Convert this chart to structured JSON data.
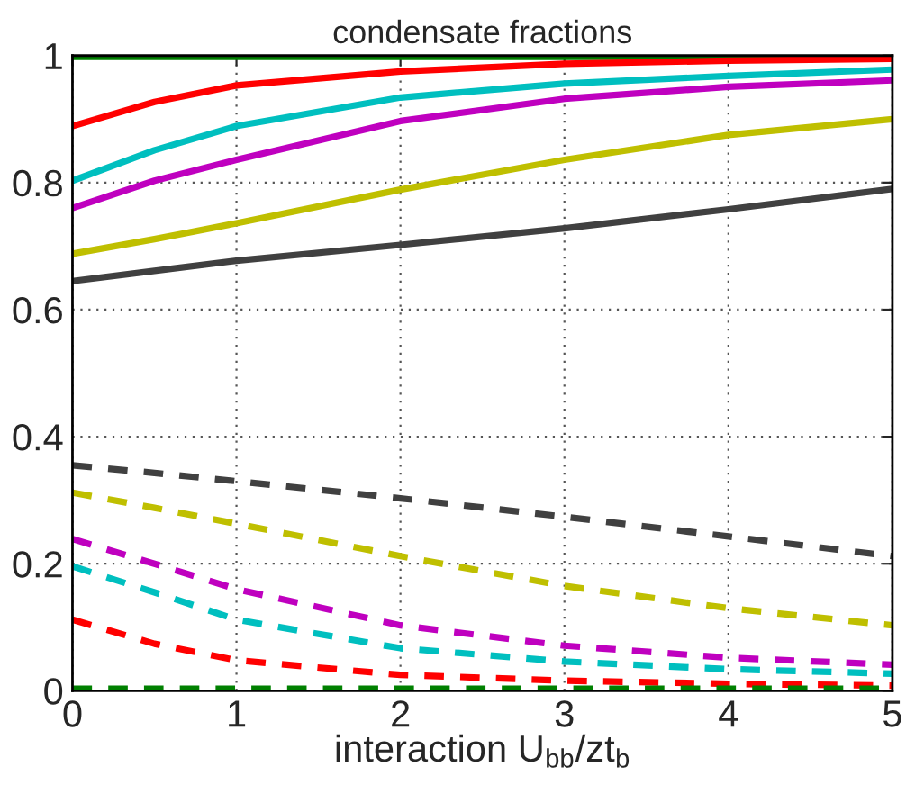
{
  "chart_data": {
    "type": "line",
    "title": "condensate fractions",
    "xlabel": "interaction U$_{bb}$/zt$_{b}$",
    "xlim": [
      0,
      5
    ],
    "ylim": [
      0,
      1
    ],
    "xticks": [
      0,
      1,
      2,
      3,
      4,
      5
    ],
    "yticks": [
      0,
      0.2,
      0.4,
      0.6,
      0.8,
      1
    ],
    "grid": true,
    "x": [
      0,
      0.5,
      1,
      2,
      3,
      4,
      5
    ],
    "series": [
      {
        "color": "#008000",
        "line_style": "solid",
        "values": [
          0.998,
          0.998,
          0.998,
          0.998,
          0.998,
          0.998,
          0.998
        ]
      },
      {
        "color": "#ff0000",
        "line_style": "solid",
        "values": [
          0.889,
          0.927,
          0.953,
          0.975,
          0.987,
          0.992,
          0.995
        ]
      },
      {
        "color": "#00bfbf",
        "line_style": "solid",
        "values": [
          0.803,
          0.851,
          0.889,
          0.934,
          0.956,
          0.968,
          0.978
        ]
      },
      {
        "color": "#bf00bf",
        "line_style": "solid",
        "values": [
          0.76,
          0.803,
          0.836,
          0.897,
          0.932,
          0.951,
          0.961
        ]
      },
      {
        "color": "#bfbf00",
        "line_style": "solid",
        "values": [
          0.688,
          0.711,
          0.736,
          0.789,
          0.836,
          0.875,
          0.9
        ]
      },
      {
        "color": "#404040",
        "line_style": "solid",
        "values": [
          0.645,
          0.661,
          0.677,
          0.702,
          0.728,
          0.758,
          0.79
        ]
      },
      {
        "color": "#404040",
        "line_style": "dashed",
        "values": [
          0.355,
          0.343,
          0.33,
          0.303,
          0.274,
          0.243,
          0.212
        ]
      },
      {
        "color": "#bfbf00",
        "line_style": "dashed",
        "values": [
          0.312,
          0.288,
          0.263,
          0.212,
          0.165,
          0.13,
          0.103
        ]
      },
      {
        "color": "#bf00bf",
        "line_style": "dashed",
        "values": [
          0.239,
          0.2,
          0.16,
          0.103,
          0.071,
          0.052,
          0.041
        ]
      },
      {
        "color": "#00bfbf",
        "line_style": "dashed",
        "values": [
          0.196,
          0.155,
          0.112,
          0.067,
          0.046,
          0.034,
          0.027
        ]
      },
      {
        "color": "#ff0000",
        "line_style": "dashed",
        "values": [
          0.112,
          0.074,
          0.048,
          0.025,
          0.016,
          0.011,
          0.008
        ]
      },
      {
        "color": "#008000",
        "line_style": "dashed",
        "values": [
          0.003,
          0.003,
          0.003,
          0.003,
          0.003,
          0.003,
          0.003
        ]
      }
    ]
  }
}
